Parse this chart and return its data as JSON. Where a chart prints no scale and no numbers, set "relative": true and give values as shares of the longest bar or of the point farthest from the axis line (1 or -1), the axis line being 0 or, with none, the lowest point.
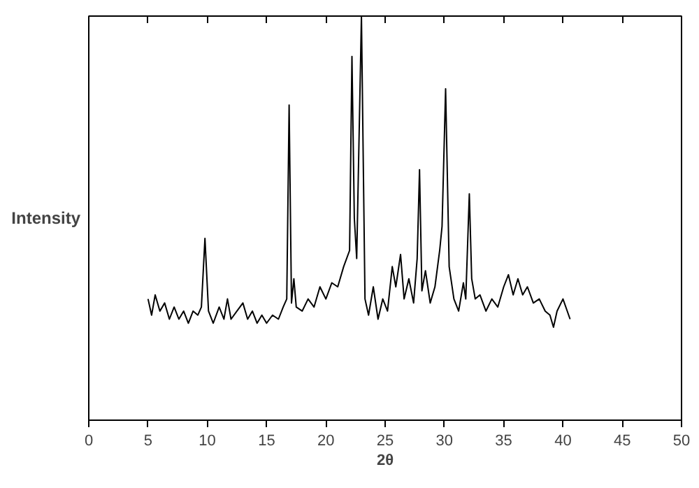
{
  "chart_data": {
    "type": "line",
    "relative": true,
    "xlabel": "2θ",
    "ylabel": "Intensity",
    "color": "#000000",
    "xlim": [
      0,
      50
    ],
    "xticks": [
      0,
      5,
      10,
      15,
      20,
      25,
      30,
      35,
      40,
      45,
      50
    ],
    "grid": false,
    "x": [
      5.0,
      5.3,
      5.6,
      6.0,
      6.4,
      6.8,
      7.2,
      7.6,
      8.0,
      8.4,
      8.8,
      9.2,
      9.5,
      9.8,
      10.1,
      10.5,
      11.0,
      11.4,
      11.7,
      12.0,
      12.5,
      13.0,
      13.4,
      13.8,
      14.2,
      14.6,
      15.0,
      15.5,
      16.0,
      16.4,
      16.7,
      16.9,
      17.1,
      17.3,
      17.5,
      18.0,
      18.5,
      19.0,
      19.5,
      20.0,
      20.5,
      21.0,
      21.5,
      22.0,
      22.2,
      22.4,
      22.6,
      22.8,
      23.0,
      23.3,
      23.6,
      24.0,
      24.4,
      24.8,
      25.2,
      25.6,
      25.9,
      26.3,
      26.6,
      27.0,
      27.4,
      27.7,
      27.9,
      28.1,
      28.4,
      28.8,
      29.2,
      29.6,
      29.8,
      30.1,
      30.4,
      30.8,
      31.2,
      31.6,
      31.8,
      32.1,
      32.3,
      32.6,
      33.0,
      33.5,
      34.0,
      34.5,
      35.0,
      35.4,
      35.8,
      36.2,
      36.6,
      37.0,
      37.5,
      38.0,
      38.5,
      38.9,
      39.2,
      39.5,
      40.0,
      40.6
    ],
    "values": [
      0.3,
      0.26,
      0.31,
      0.27,
      0.29,
      0.25,
      0.28,
      0.25,
      0.27,
      0.24,
      0.27,
      0.26,
      0.28,
      0.45,
      0.27,
      0.24,
      0.28,
      0.25,
      0.3,
      0.25,
      0.27,
      0.29,
      0.25,
      0.27,
      0.24,
      0.26,
      0.24,
      0.26,
      0.25,
      0.28,
      0.3,
      0.78,
      0.29,
      0.35,
      0.28,
      0.27,
      0.3,
      0.28,
      0.33,
      0.3,
      0.34,
      0.33,
      0.38,
      0.42,
      0.9,
      0.5,
      0.4,
      0.7,
      1.0,
      0.3,
      0.26,
      0.33,
      0.25,
      0.3,
      0.27,
      0.38,
      0.33,
      0.41,
      0.3,
      0.35,
      0.29,
      0.4,
      0.62,
      0.32,
      0.37,
      0.29,
      0.33,
      0.42,
      0.48,
      0.82,
      0.38,
      0.3,
      0.27,
      0.34,
      0.3,
      0.56,
      0.35,
      0.3,
      0.31,
      0.27,
      0.3,
      0.28,
      0.33,
      0.36,
      0.31,
      0.35,
      0.31,
      0.33,
      0.29,
      0.3,
      0.27,
      0.26,
      0.23,
      0.27,
      0.3,
      0.25
    ]
  }
}
